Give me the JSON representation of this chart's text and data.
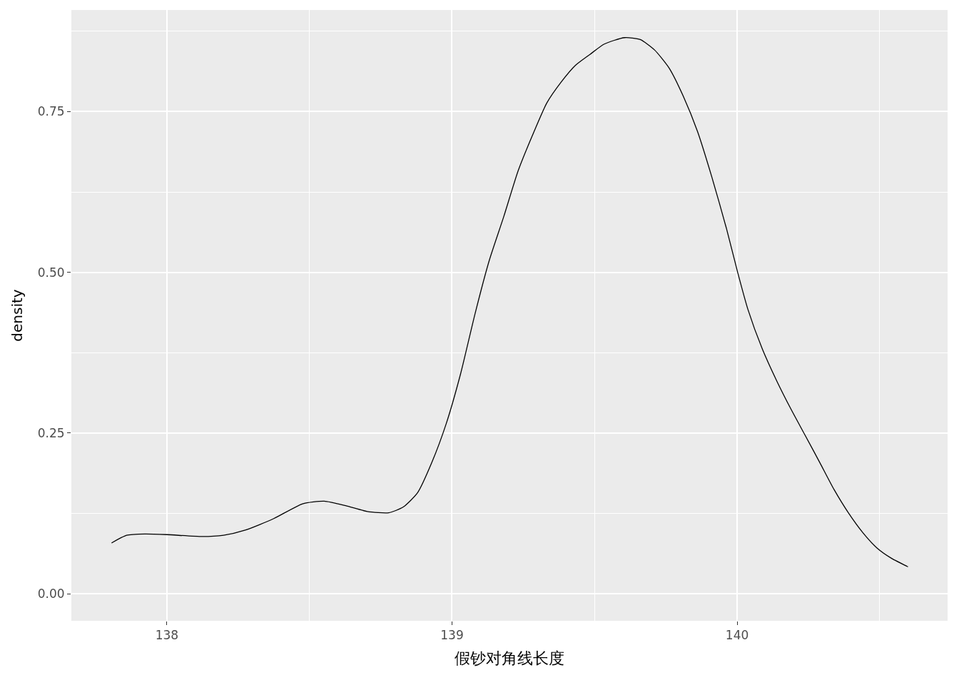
{
  "chart_data": {
    "type": "line",
    "xlabel": "假钞对角线长度",
    "ylabel": "density",
    "x": [
      137.806,
      137.859,
      137.922,
      138.0,
      138.123,
      138.199,
      138.275,
      138.375,
      138.476,
      138.552,
      138.627,
      138.703,
      138.778,
      138.829,
      138.879,
      138.929,
      138.98,
      139.03,
      139.081,
      139.131,
      139.181,
      139.232,
      139.282,
      139.332,
      139.383,
      139.433,
      139.484,
      139.534,
      139.605,
      139.66,
      139.71,
      139.761,
      139.811,
      139.861,
      139.912,
      139.962,
      140.0,
      140.038,
      140.088,
      140.139,
      140.189,
      140.239,
      140.29,
      140.34,
      140.39,
      140.441,
      140.491,
      140.542,
      140.599
    ],
    "series": [
      {
        "color": "#000000",
        "values": [
          0.079,
          0.091,
          0.093,
          0.092,
          0.089,
          0.091,
          0.099,
          0.117,
          0.14,
          0.144,
          0.137,
          0.128,
          0.126,
          0.135,
          0.157,
          0.204,
          0.265,
          0.342,
          0.436,
          0.519,
          0.586,
          0.658,
          0.713,
          0.763,
          0.796,
          0.822,
          0.839,
          0.855,
          0.865,
          0.862,
          0.846,
          0.818,
          0.774,
          0.719,
          0.647,
          0.569,
          0.503,
          0.442,
          0.381,
          0.331,
          0.287,
          0.246,
          0.204,
          0.162,
          0.126,
          0.095,
          0.071,
          0.055,
          0.042
        ]
      }
    ],
    "xlim": [
      137.665,
      140.738
    ],
    "xticks": [
      138,
      139,
      140
    ],
    "ylim": [
      -0.042,
      0.908
    ],
    "yticks": [
      {
        "value": 0,
        "label": "0.00"
      },
      {
        "value": 0.25,
        "label": "0.25"
      },
      {
        "value": 0.5,
        "label": "0.50"
      },
      {
        "value": 0.75,
        "label": "0.75"
      }
    ],
    "grid": true,
    "marker": "none",
    "line_style": "solid"
  }
}
